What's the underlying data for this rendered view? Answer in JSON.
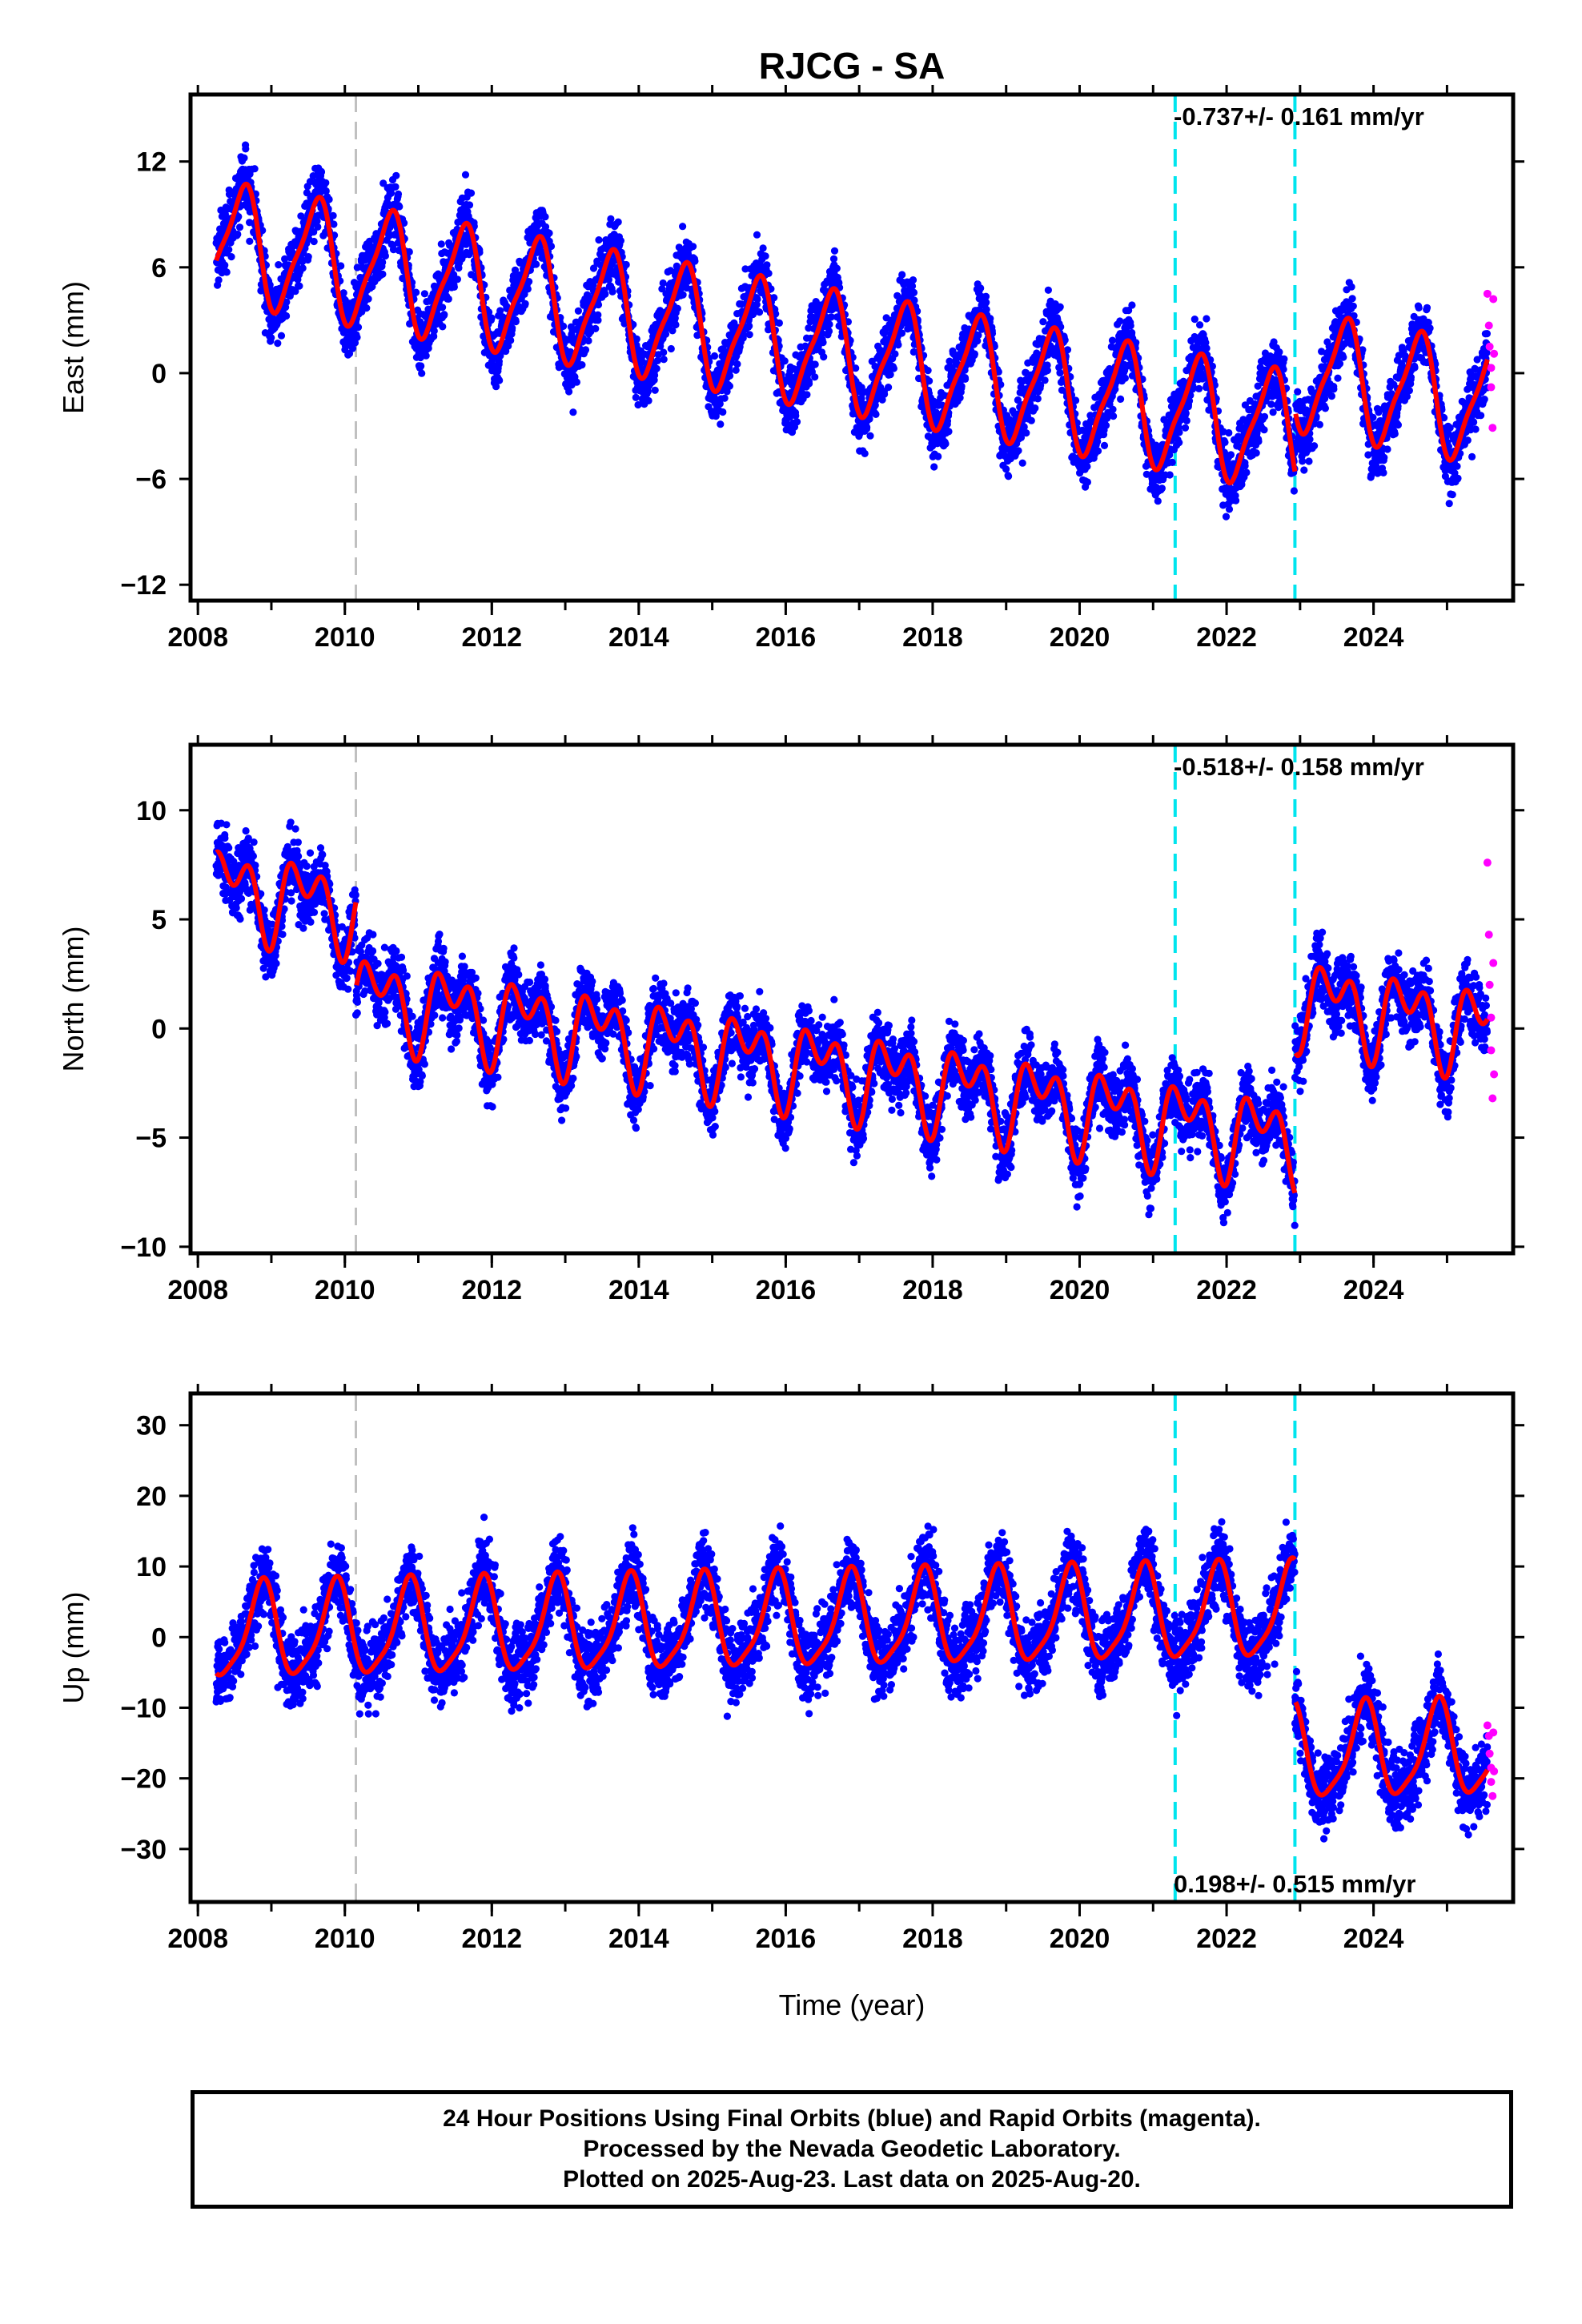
{
  "chart_data": {
    "type": "scatter",
    "title": "RJCG - SA",
    "xlabel": "Time (year)",
    "xlim": [
      2007.9,
      2025.9
    ],
    "xticks": [
      2008,
      2010,
      2012,
      2014,
      2016,
      2018,
      2020,
      2022,
      2024
    ],
    "final_orbit_color": "#0000ff",
    "rapid_orbit_color": "#ff00ff",
    "model_color": "#ff0000",
    "event_lines": [
      {
        "x": 2010.15,
        "color": "#c0c0c0"
      },
      {
        "x": 2021.3,
        "color": "#00e5ee"
      },
      {
        "x": 2022.93,
        "color": "#00e5ee"
      }
    ],
    "panels": [
      {
        "ylabel": "East (mm)",
        "ylim": [
          -12.9,
          15.8
        ],
        "yticks": [
          -12,
          -6,
          0,
          6,
          12
        ],
        "rate_label": "-0.737+/- 0.161 mm/yr",
        "rate_position": "top-right",
        "model": {
          "offset": 7.5,
          "trend": -0.74,
          "amp1": 3.2,
          "amp2": 0.8,
          "phase1": 0.35,
          "phase2": 0.1,
          "steps": [
            {
              "x": 2022.93,
              "dy": 3.5
            }
          ],
          "noise": 1.6
        },
        "rapid": [
          {
            "x": 2025.55,
            "y": 4.5
          },
          {
            "x": 2025.57,
            "y": 2.7
          },
          {
            "x": 2025.58,
            "y": 1.5
          },
          {
            "x": 2025.6,
            "y": 0.3
          },
          {
            "x": 2025.6,
            "y": -0.8
          },
          {
            "x": 2025.62,
            "y": -3.1
          },
          {
            "x": 2025.63,
            "y": 4.2
          },
          {
            "x": 2025.64,
            "y": 1.1
          }
        ]
      },
      {
        "ylabel": "North (mm)",
        "ylim": [
          -10.3,
          13.0
        ],
        "yticks": [
          -10,
          -5,
          0,
          5,
          10
        ],
        "rate_label": "-0.518+/- 0.158 mm/yr",
        "rate_position": "top-right",
        "model": {
          "offset": 6.5,
          "trend": -0.52,
          "amp1": 1.4,
          "amp2": 1.2,
          "phase1": 0.2,
          "phase2": 0.1,
          "steps": [
            {
              "x": 2010.15,
              "dy": -4.0
            },
            {
              "x": 2022.93,
              "dy": 6.5
            }
          ],
          "noise": 1.3
        },
        "rapid": [
          {
            "x": 2025.55,
            "y": 7.6
          },
          {
            "x": 2025.57,
            "y": 4.3
          },
          {
            "x": 2025.58,
            "y": 2.0
          },
          {
            "x": 2025.6,
            "y": 0.5
          },
          {
            "x": 2025.6,
            "y": -1.0
          },
          {
            "x": 2025.62,
            "y": -3.2
          },
          {
            "x": 2025.63,
            "y": 3.0
          },
          {
            "x": 2025.64,
            "y": -2.1
          }
        ]
      },
      {
        "ylabel": "Up (mm)",
        "ylim": [
          -37.5,
          34.5
        ],
        "yticks": [
          -30,
          -20,
          -10,
          0,
          10,
          20,
          30
        ],
        "rate_label": "0.198+/- 0.515 mm/yr",
        "rate_position": "bottom-right",
        "model": {
          "offset": 0.5,
          "trend": 0.2,
          "amp1": 6.5,
          "amp2": 1.5,
          "phase1": 0.62,
          "phase2": 0.3,
          "steps": [
            {
              "x": 2022.93,
              "dy": -20.0
            }
          ],
          "noise": 4.5
        },
        "rapid": [
          {
            "x": 2025.55,
            "y": -12.5
          },
          {
            "x": 2025.57,
            "y": -14.0
          },
          {
            "x": 2025.58,
            "y": -16.5
          },
          {
            "x": 2025.6,
            "y": -18.5
          },
          {
            "x": 2025.6,
            "y": -20.5
          },
          {
            "x": 2025.62,
            "y": -22.5
          },
          {
            "x": 2025.63,
            "y": -13.5
          },
          {
            "x": 2025.64,
            "y": -19.0
          }
        ]
      }
    ]
  },
  "footer": {
    "line1": "24 Hour Positions Using Final Orbits (blue) and Rapid Orbits (magenta).",
    "line2": "Processed by the Nevada Geodetic Laboratory.",
    "line3": "Plotted on 2025-Aug-23. Last data on 2025-Aug-20."
  }
}
